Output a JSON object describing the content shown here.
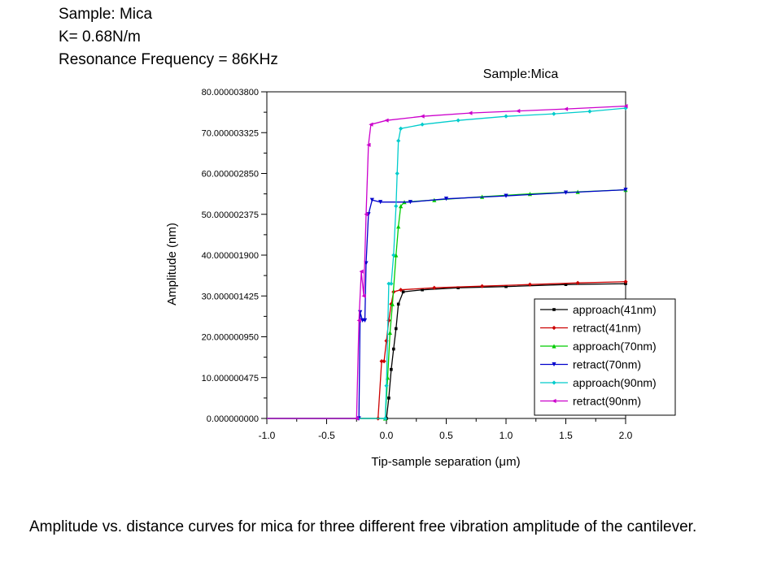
{
  "header": {
    "line1": "Sample: Mica",
    "line2": "K= 0.68N/m",
    "line3": "Resonance Frequency = 86KHz"
  },
  "caption": "Amplitude vs. distance curves for mica for three different free vibration amplitude of the cantilever.",
  "chart_data": {
    "type": "line",
    "title": "Sample:Mica",
    "xlabel": "Tip-sample separation (μm)",
    "ylabel": "Amplitude (nm)",
    "xlim": [
      -1.0,
      2.0
    ],
    "ylim": [
      0,
      80.0000038
    ],
    "x_ticks": [
      "-1.0",
      "-0.5",
      "0.0",
      "0.5",
      "1.0",
      "1.5",
      "2.0"
    ],
    "y_ticks": [
      "0.000000000",
      "10.000000475",
      "20.000000950",
      "30.000001425",
      "40.000001900",
      "50.000002375",
      "60.000002850",
      "70.000003325",
      "80.000003800"
    ],
    "grid": false,
    "legend_position": "bottom-right",
    "series": [
      {
        "name": "approach(41nm)",
        "color": "#000000",
        "marker": "square",
        "points": [
          [
            -1.0,
            0
          ],
          [
            0.0,
            0
          ],
          [
            0.02,
            5
          ],
          [
            0.04,
            12
          ],
          [
            0.06,
            17
          ],
          [
            0.08,
            22
          ],
          [
            0.1,
            28
          ],
          [
            0.14,
            31
          ],
          [
            0.3,
            31.5
          ],
          [
            0.6,
            32
          ],
          [
            1.0,
            32.3
          ],
          [
            1.5,
            32.8
          ],
          [
            2.0,
            33
          ]
        ]
      },
      {
        "name": "retract(41nm)",
        "color": "#cc0000",
        "marker": "diamond",
        "points": [
          [
            -1.0,
            0
          ],
          [
            -0.07,
            0
          ],
          [
            -0.04,
            14
          ],
          [
            -0.02,
            14
          ],
          [
            0.0,
            19
          ],
          [
            0.02,
            24
          ],
          [
            0.04,
            28
          ],
          [
            0.06,
            31
          ],
          [
            0.12,
            31.5
          ],
          [
            0.4,
            32
          ],
          [
            0.8,
            32.4
          ],
          [
            1.2,
            32.8
          ],
          [
            1.6,
            33.2
          ],
          [
            2.0,
            33.5
          ]
        ]
      },
      {
        "name": "approach(70nm)",
        "color": "#00cc00",
        "marker": "triangle-up",
        "points": [
          [
            -1.0,
            0
          ],
          [
            -0.01,
            0
          ],
          [
            0.01,
            10
          ],
          [
            0.03,
            21
          ],
          [
            0.05,
            28
          ],
          [
            0.08,
            40
          ],
          [
            0.1,
            47
          ],
          [
            0.12,
            52
          ],
          [
            0.15,
            53
          ],
          [
            0.4,
            53.5
          ],
          [
            0.8,
            54.3
          ],
          [
            1.2,
            55
          ],
          [
            1.6,
            55.5
          ],
          [
            2.0,
            56
          ]
        ]
      },
      {
        "name": "retract(70nm)",
        "color": "#0000cc",
        "marker": "triangle-down",
        "points": [
          [
            -1.0,
            0
          ],
          [
            -0.23,
            0
          ],
          [
            -0.22,
            26
          ],
          [
            -0.2,
            24
          ],
          [
            -0.18,
            24
          ],
          [
            -0.17,
            38
          ],
          [
            -0.15,
            50
          ],
          [
            -0.12,
            53.5
          ],
          [
            -0.05,
            53
          ],
          [
            0.2,
            53
          ],
          [
            0.5,
            53.8
          ],
          [
            1.0,
            54.5
          ],
          [
            1.5,
            55.3
          ],
          [
            2.0,
            56
          ]
        ]
      },
      {
        "name": "approach(90nm)",
        "color": "#00cccc",
        "marker": "diamond",
        "points": [
          [
            -1.0,
            0
          ],
          [
            -0.01,
            0
          ],
          [
            0.0,
            8
          ],
          [
            0.02,
            33
          ],
          [
            0.04,
            33
          ],
          [
            0.06,
            40
          ],
          [
            0.08,
            52
          ],
          [
            0.09,
            60
          ],
          [
            0.1,
            68
          ],
          [
            0.12,
            71
          ],
          [
            0.3,
            72
          ],
          [
            0.6,
            73
          ],
          [
            1.0,
            74
          ],
          [
            1.4,
            74.6
          ],
          [
            1.7,
            75.2
          ],
          [
            2.0,
            76
          ]
        ]
      },
      {
        "name": "retract(90nm)",
        "color": "#cc00cc",
        "marker": "triangle-left",
        "points": [
          [
            -1.0,
            0
          ],
          [
            -0.25,
            0
          ],
          [
            -0.23,
            24
          ],
          [
            -0.21,
            36
          ],
          [
            -0.19,
            30
          ],
          [
            -0.17,
            50
          ],
          [
            -0.15,
            67
          ],
          [
            -0.13,
            72
          ],
          [
            0.0,
            73
          ],
          [
            0.3,
            74
          ],
          [
            0.7,
            74.8
          ],
          [
            1.1,
            75.3
          ],
          [
            1.5,
            75.8
          ],
          [
            2.0,
            76.5
          ]
        ]
      }
    ]
  }
}
